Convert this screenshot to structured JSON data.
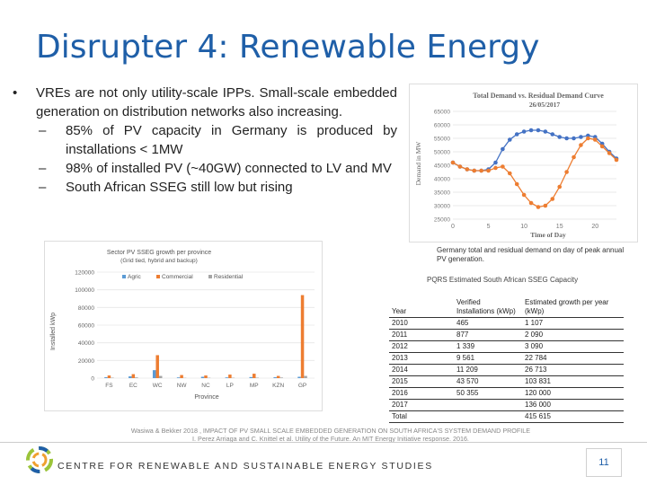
{
  "slide": {
    "title": "Disrupter 4: Renewable Energy",
    "bullet_symbol": "•",
    "bullet": "VREs are not only utility-scale IPPs. Small-scale embedded generation on distribution networks also increasing.",
    "dash_symbol": "–",
    "subbullets": [
      "85% of PV capacity in Germany is produced by installations < 1MW",
      "98% of installed PV (~40GW) connected to LV and MV",
      "South African SSEG still low but rising"
    ]
  },
  "demand_chart": {
    "caption": "Germany total and residual demand on day of peak annual PV generation.",
    "chart_data": {
      "type": "line",
      "title": "Total Demand vs. Residual Demand Curve",
      "subtitle": "26/05/2017",
      "xlabel": "Time of Day",
      "ylabel": "Demand in MW",
      "x_ticks": [
        0,
        5,
        10,
        15,
        20
      ],
      "y_ticks": [
        25000,
        30000,
        35000,
        40000,
        45000,
        50000,
        55000,
        60000,
        65000
      ],
      "xlim": [
        0,
        23
      ],
      "ylim": [
        25000,
        65000
      ],
      "grid": true,
      "series": [
        {
          "color": "#4472c4",
          "x": [
            0,
            1,
            2,
            3,
            4,
            5,
            6,
            7,
            8,
            9,
            10,
            11,
            12,
            13,
            14,
            15,
            16,
            17,
            18,
            19,
            20,
            21,
            22,
            23
          ],
          "values": [
            46000,
            44500,
            43500,
            43000,
            43000,
            43500,
            46000,
            51000,
            54500,
            56500,
            57500,
            58000,
            58000,
            57500,
            56500,
            55500,
            55000,
            55000,
            55500,
            56000,
            55500,
            53000,
            50000,
            47500
          ]
        },
        {
          "color": "#ed7d31",
          "x": [
            0,
            1,
            2,
            3,
            4,
            5,
            6,
            7,
            8,
            9,
            10,
            11,
            12,
            13,
            14,
            15,
            16,
            17,
            18,
            19,
            20,
            21,
            22,
            23
          ],
          "values": [
            46000,
            44500,
            43500,
            43000,
            43000,
            43000,
            44000,
            44500,
            42000,
            38000,
            34000,
            31000,
            29500,
            30000,
            32500,
            37000,
            42500,
            48000,
            52500,
            55000,
            54500,
            52000,
            49500,
            47000
          ]
        }
      ]
    }
  },
  "sseg_chart": {
    "chart_data": {
      "type": "bar",
      "title": "Sector PV SSEG growth per province",
      "subtitle": "(Grid tied, hybrid and backup)",
      "xlabel": "Province",
      "ylabel": "Installed kWp",
      "categories": [
        "FS",
        "EC",
        "WC",
        "NW",
        "NC",
        "LP",
        "MP",
        "KZN",
        "GP"
      ],
      "y_ticks": [
        0,
        20000,
        40000,
        60000,
        80000,
        100000,
        120000
      ],
      "ylim": [
        0,
        120000
      ],
      "legend_position": "top",
      "series": [
        {
          "name": "Agric",
          "color": "#5b9bd5",
          "values": [
            1000,
            2000,
            9000,
            800,
            1500,
            800,
            1200,
            1000,
            1500
          ]
        },
        {
          "name": "Commercial",
          "color": "#ed7d31",
          "values": [
            3000,
            4500,
            26000,
            3500,
            3000,
            4000,
            5000,
            2500,
            94000
          ]
        },
        {
          "name": "Residential",
          "color": "#a5a5a5",
          "values": [
            500,
            800,
            2500,
            300,
            400,
            400,
            500,
            700,
            2500
          ]
        }
      ]
    }
  },
  "table": {
    "title": "PQRS Estimated South African SSEG Capacity",
    "headers": [
      "Year",
      "Verified Installations (kWp)",
      "Estimated growth per year (kWp)"
    ],
    "rows": [
      [
        "2010",
        "465",
        "1 107"
      ],
      [
        "2011",
        "877",
        "2 090"
      ],
      [
        "2012",
        "1 339",
        "3 090"
      ],
      [
        "2013",
        "9 561",
        "22 784"
      ],
      [
        "2014",
        "11 209",
        "26 713"
      ],
      [
        "2015",
        "43 570",
        "103 831"
      ],
      [
        "2016",
        "50 355",
        "120 000"
      ],
      [
        "2017",
        "",
        "136 000"
      ],
      [
        "Total",
        "",
        "415 615"
      ]
    ]
  },
  "citation": {
    "line1": "Wasiwa & Bekker 2018 , IMPACT OF PV SMALL SCALE EMBEDDED GENERATION ON SOUTH AFRICA'S SYSTEM DEMAND PROFILE",
    "line2": "I. Perez Arriaga and C. Knittel et al. Utility of the Future. An MIT Energy Initiative response. 2016."
  },
  "footer": {
    "org": "CENTRE FOR RENEWABLE AND SUSTAINABLE ENERGY STUDIES",
    "page_number": "11"
  }
}
